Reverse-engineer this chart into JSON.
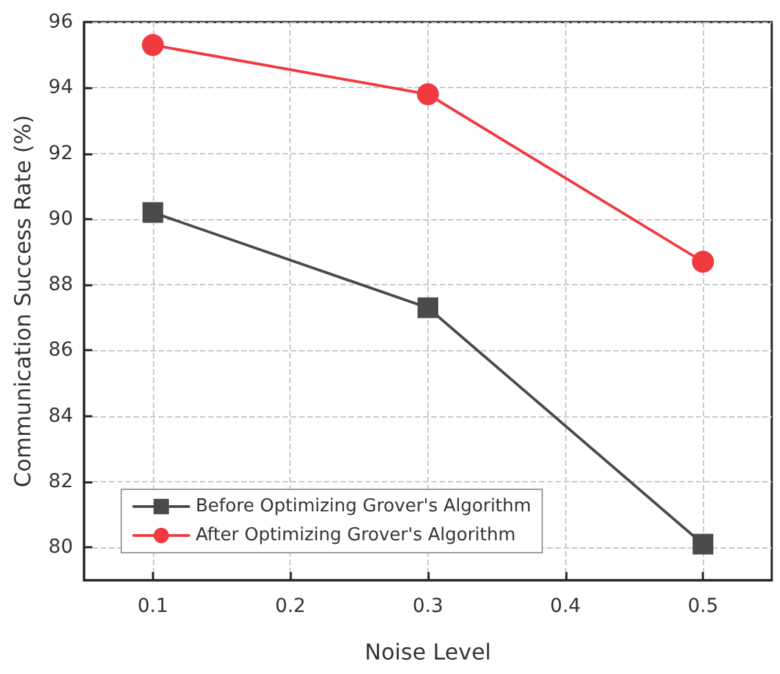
{
  "chart_data": {
    "type": "line",
    "xlabel": "Noise Level",
    "ylabel": "Communication Success Rate (%)",
    "x": [
      0.1,
      0.3,
      0.5
    ],
    "series": [
      {
        "name": "Before Optimizing Grover's Algorithm",
        "color": "#4a4a4a",
        "marker": "square",
        "values": [
          90.2,
          87.3,
          80.1
        ]
      },
      {
        "name": "After Optimizing Grover's Algorithm",
        "color": "#ef3b3f",
        "marker": "circle",
        "values": [
          95.3,
          93.8,
          88.7
        ]
      }
    ],
    "xlim": [
      0.05,
      0.55
    ],
    "xticks": [
      0.1,
      0.2,
      0.3,
      0.4,
      0.5
    ],
    "ylim": [
      79,
      96
    ],
    "yticks": [
      80,
      82,
      84,
      86,
      88,
      90,
      92,
      94,
      96
    ],
    "grid": true,
    "legend": "bottom left",
    "line_style": "solid"
  }
}
